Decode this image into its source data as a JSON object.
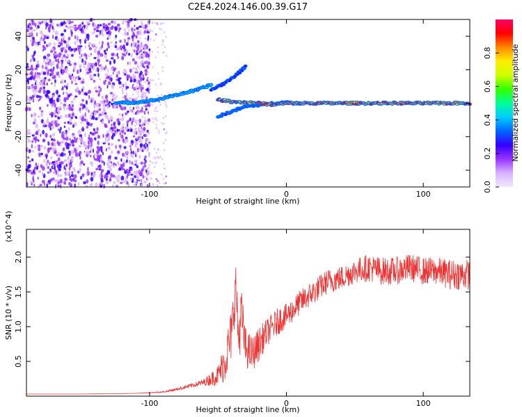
{
  "title": "C2E4.2024.146.00.39.G17",
  "chart_data": [
    {
      "type": "heatmap",
      "xlabel": "Height of straight line (km)",
      "ylabel": "Frequency (Hz)",
      "xlim": [
        -190,
        134
      ],
      "ylim": [
        -50,
        50
      ],
      "x_ticks": [
        -100,
        0,
        100
      ],
      "x_tick_labels": [
        "-100",
        "0",
        "100"
      ],
      "y_ticks": [
        -40,
        -20,
        0,
        20,
        40
      ],
      "y_tick_labels": [
        "-40",
        "-20",
        "0",
        "20",
        "40"
      ],
      "colorbar": {
        "label": "Normalized spectral amplitude",
        "range": [
          0,
          1
        ],
        "ticks": [
          0.0,
          0.2,
          0.4,
          0.6,
          0.8
        ],
        "tick_labels": [
          "0.0",
          "0.2",
          "0.4",
          "0.6",
          "0.8"
        ],
        "colors": [
          "#f2e6ff",
          "#d9b3ff",
          "#9933ff",
          "#3300ff",
          "#0066ff",
          "#00ccff",
          "#00ff99",
          "#33ff00",
          "#ccff00",
          "#ffee00",
          "#ff8800",
          "#ff0000",
          "#ff0066"
        ]
      },
      "ridges": [
        {
          "x": [
            -125,
            -110,
            -95,
            -80,
            -65,
            -55
          ],
          "y": [
            0,
            0.5,
            2,
            5,
            8,
            11
          ],
          "amplitude": 0.45
        },
        {
          "x": [
            -55,
            -45,
            -35,
            -30
          ],
          "y": [
            8,
            12,
            18,
            22
          ],
          "amplitude": 0.3
        },
        {
          "x": [
            -50,
            -40,
            -30,
            -20,
            -10,
            0,
            10
          ],
          "y": [
            -8,
            -5,
            -2,
            -1,
            0,
            0.5,
            0
          ],
          "amplitude": 0.35
        },
        {
          "x": [
            -50,
            -40,
            -30,
            -20,
            -10,
            0,
            10,
            134
          ],
          "y": [
            2,
            1,
            0.5,
            0,
            -1,
            0,
            0,
            0
          ],
          "amplitude": 0.95
        }
      ]
    },
    {
      "type": "line",
      "xlabel": "Height of straight line (km)",
      "ylabel": "SNR (10 * v/v)",
      "y_multiplier_label": "(x10^4)",
      "xlim": [
        -190,
        134
      ],
      "ylim": [
        0,
        24000
      ],
      "x_ticks": [
        -100,
        0,
        100
      ],
      "x_tick_labels": [
        "-100",
        "0",
        "100"
      ],
      "y_ticks": [
        5000,
        10000,
        15000,
        20000
      ],
      "y_tick_labels": [
        "0.5",
        "1.0",
        "1.5",
        "2.0"
      ],
      "line_color": "#ee3333",
      "series": [
        {
          "x": [
            -190,
            -150,
            -110,
            -90,
            -80,
            -70,
            -60,
            -50,
            -45,
            -40,
            -37,
            -35,
            -33,
            -30,
            -25,
            -20,
            -15,
            -10,
            -5,
            0,
            10,
            20,
            30,
            40,
            50,
            60,
            70,
            80,
            90,
            100,
            110,
            120,
            134
          ],
          "values": [
            300,
            300,
            400,
            600,
            1000,
            1500,
            2000,
            3000,
            5000,
            9000,
            16000,
            8000,
            12000,
            7000,
            6000,
            7500,
            9000,
            10000,
            11000,
            11500,
            13500,
            15000,
            16500,
            17000,
            18000,
            18500,
            18000,
            18000,
            18500,
            18000,
            18000,
            17500,
            17500
          ],
          "noise": [
            0,
            0,
            0,
            100,
            200,
            300,
            500,
            1500,
            3000,
            4000,
            3500,
            4000,
            4000,
            3000,
            2500,
            2500,
            2000,
            2000,
            2000,
            1800,
            1800,
            1800,
            1800,
            1800,
            1800,
            2000,
            2000,
            2000,
            2000,
            2000,
            2000,
            2200,
            2200
          ]
        }
      ]
    }
  ]
}
